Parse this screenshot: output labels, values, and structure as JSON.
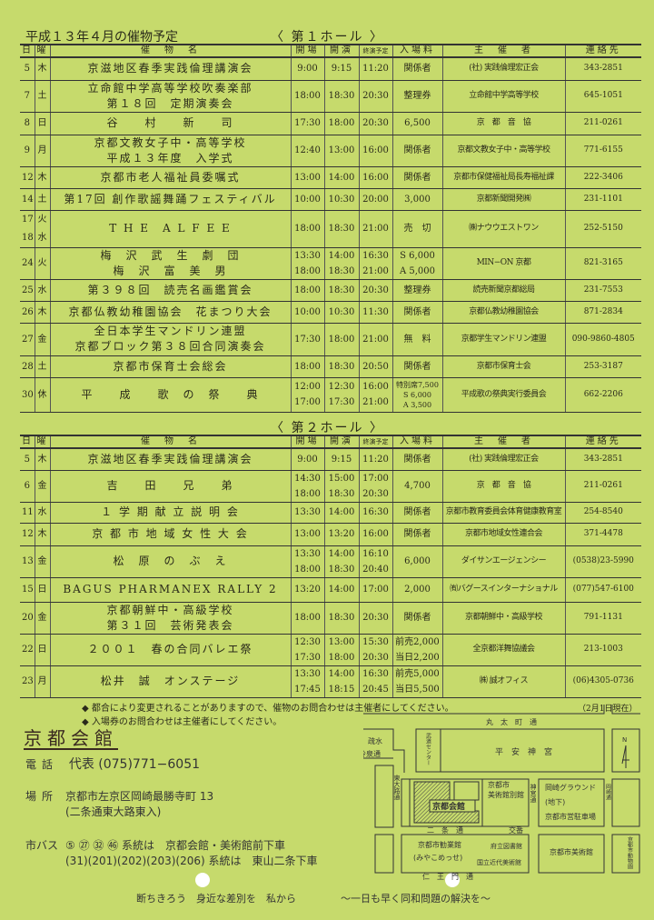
{
  "title": "平成１３年４月の催物予定",
  "headers": {
    "day": "日",
    "dow": "曜",
    "name": "催　物　名",
    "open": "開場",
    "start": "開演",
    "end": "終演予定",
    "fee": "入場料",
    "org": "主　催　者",
    "tel": "連絡先"
  },
  "hall1": {
    "label": "〈 第１ホール 〉",
    "rows": [
      {
        "day": "5",
        "dow": "木",
        "name": "京滋地区春季実践倫理講演会",
        "open": "9:00",
        "start": "9:15",
        "end": "11:20",
        "fee": "関係者",
        "org": "(社) 実践倫理宏正会",
        "tel": "343-2851"
      },
      {
        "day": "7",
        "dow": "土",
        "name": "立命館中学高等学校吹奏楽部\n第１８回　定期演奏会",
        "open": "18:00",
        "start": "18:30",
        "end": "20:30",
        "fee": "整理券",
        "org": "立命館中学高等学校",
        "tel": "645-1051"
      },
      {
        "day": "8",
        "dow": "日",
        "name": "谷　　村　　新　　司",
        "open": "17:30",
        "start": "18:00",
        "end": "20:30",
        "fee": "6,500",
        "org": "京　都　音　協",
        "tel": "211-0261"
      },
      {
        "day": "9",
        "dow": "月",
        "name": "京都文教女子中・高等学校\n平成１３年度　入学式",
        "open": "12:40",
        "start": "13:00",
        "end": "16:00",
        "fee": "関係者",
        "org": "京都文教女子中・高等学校",
        "tel": "771-6155"
      },
      {
        "day": "12",
        "dow": "木",
        "name": "京都市老人福祉員委嘱式",
        "open": "13:00",
        "start": "14:00",
        "end": "16:00",
        "fee": "関係者",
        "org": "京都市保健福祉局長寿福祉課",
        "tel": "222-3406"
      },
      {
        "day": "14",
        "dow": "土",
        "name": "第17回 創作歌謡舞踊フェスティバル",
        "open": "10:00",
        "start": "10:30",
        "end": "20:00",
        "fee": "3,000",
        "org": "京都新聞開発㈱",
        "tel": "231-1101"
      },
      {
        "day": "17\n18",
        "dow": "火\n水",
        "name": "T H E　A L F E E",
        "open": "18:00",
        "start": "18:30",
        "end": "21:00",
        "fee": "売　切",
        "org": "㈱ナウウエストワン",
        "tel": "252-5150"
      },
      {
        "day": "24",
        "dow": "火",
        "name": "梅　沢　武　生　劇　団\n梅　沢　富　美　男",
        "open": "13:30\n18:00",
        "start": "14:00\n18:30",
        "end": "16:30\n21:00",
        "fee": "S 6,000\nA 5,000",
        "org": "MIN−ON 京都",
        "tel": "821-3165"
      },
      {
        "day": "25",
        "dow": "水",
        "name": "第３９８回　読売名画鑑賞会",
        "open": "18:00",
        "start": "18:30",
        "end": "20:30",
        "fee": "整理券",
        "org": "読売新聞京都総局",
        "tel": "231-7553"
      },
      {
        "day": "26",
        "dow": "木",
        "name": "京都仏教幼稚園協会　花まつり大会",
        "open": "10:00",
        "start": "10:30",
        "end": "11:30",
        "fee": "関係者",
        "org": "京都仏教幼稚園協会",
        "tel": "871-2834"
      },
      {
        "day": "27",
        "dow": "金",
        "name": "全日本学生マンドリン連盟\n京都ブロック第３８回合同演奏会",
        "open": "17:30",
        "start": "18:00",
        "end": "21:00",
        "fee": "無　料",
        "org": "京都学生マンドリン連盟",
        "tel": "090-9860-4805"
      },
      {
        "day": "28",
        "dow": "土",
        "name": "京都市保育士会総会",
        "open": "18:00",
        "start": "18:30",
        "end": "20:50",
        "fee": "関係者",
        "org": "京都市保育士会",
        "tel": "253-3187"
      },
      {
        "day": "30",
        "dow": "休",
        "name": "平　　成　　歌　の　祭　　典",
        "open": "12:00\n17:00",
        "start": "12:30\n17:30",
        "end": "16:00\n21:00",
        "fee": "特別席7,500\nS 6,000\nA 3,500",
        "org": "平成歌の祭典実行委員会",
        "tel": "662-2206"
      }
    ]
  },
  "hall2": {
    "label": "〈 第２ホール 〉",
    "rows": [
      {
        "day": "5",
        "dow": "木",
        "name": "京滋地区春季実践倫理講演会",
        "open": "9:00",
        "start": "9:15",
        "end": "11:20",
        "fee": "関係者",
        "org": "(社) 実践倫理宏正会",
        "tel": "343-2851"
      },
      {
        "day": "6",
        "dow": "金",
        "name": "吉　　田　　兄　　弟",
        "open": "14:30\n18:00",
        "start": "15:00\n18:30",
        "end": "17:00\n20:30",
        "fee": "4,700",
        "org": "京　都　音　協",
        "tel": "211-0261"
      },
      {
        "day": "11",
        "dow": "水",
        "name": "１ 学 期 献 立 説 明 会",
        "open": "13:30",
        "start": "14:00",
        "end": "16:30",
        "fee": "関係者",
        "org": "京都市教育委員会体育健康教育室",
        "tel": "254-8540"
      },
      {
        "day": "12",
        "dow": "木",
        "name": "京 都 市 地 域 女 性 大 会",
        "open": "13:00",
        "start": "13:20",
        "end": "16:00",
        "fee": "関係者",
        "org": "京都市地域女性連合会",
        "tel": "371-4478"
      },
      {
        "day": "13",
        "dow": "金",
        "name": "松　原　の　ぶ　え",
        "open": "13:30\n18:00",
        "start": "14:00\n18:30",
        "end": "16:10\n20:40",
        "fee": "6,000",
        "org": "ダイサンエージェンシー",
        "tel": "(0538)23-5990"
      },
      {
        "day": "15",
        "dow": "日",
        "name": "BAGUS PHARMANEX RALLY 2",
        "open": "13:20",
        "start": "14:00",
        "end": "17:00",
        "fee": "2,000",
        "org": "㈲バグースインターナショナル",
        "tel": "(077)547-6100"
      },
      {
        "day": "20",
        "dow": "金",
        "name": "京都朝鮮中・高級学校\n第３１回　芸術発表会",
        "open": "18:00",
        "start": "18:30",
        "end": "20:30",
        "fee": "関係者",
        "org": "京都朝鮮中・高級学校",
        "tel": "791-1131"
      },
      {
        "day": "22",
        "dow": "日",
        "name": "２００１　春の合同バレエ祭",
        "open": "12:30\n17:30",
        "start": "13:00\n18:00",
        "end": "15:30\n20:30",
        "fee": "前売2,000\n当日2,200",
        "org": "全京都洋舞協議会",
        "tel": "213-1003"
      },
      {
        "day": "23",
        "dow": "月",
        "name": "松井　誠　オンステージ",
        "open": "13:30\n17:45",
        "start": "14:00\n18:15",
        "end": "16:30\n20:45",
        "fee": "前売5,000\n当日5,500",
        "org": "㈱ 誠オフィス",
        "tel": "(06)4305-0736"
      }
    ]
  },
  "notes": [
    "◆ 都合により変更されることがありますので、催物のお問合わせは主催者にしてください。",
    "◆ 入場券のお問合わせは主催者にしてください。"
  ],
  "as_of": "（2月1日現在）",
  "venue": {
    "name": "京都会館",
    "phone_label": "電話",
    "phone": "代表 (075)771−6051",
    "place_label": "場所",
    "address": "京都市左京区岡崎最勝寺町 13",
    "address_note": "(二条通東大路東入)",
    "bus_label": "市バス",
    "bus1": "⑤ ㉗ ㉜ ㊻ 系統は　京都会館・美術館前下車",
    "bus2": "(31)(201)(202)(203)(206) 系統は　東山二条下車"
  },
  "map": {
    "marutamachi": "丸　太　町　通",
    "budo": "武道センター",
    "heian": "平　安　神　宮",
    "sosui": "疏水",
    "reisen": "冷泉通",
    "higashioji": "東大路通",
    "kaikan": "京都会館",
    "bekkan1": "京都市",
    "bekkan2": "美術館別館",
    "jingu": "神宮通",
    "ground": "岡崎グラウンド",
    "chika": "(地下)",
    "parking": "京都市営駐車場",
    "okazaki": "岡崎通",
    "nijo": "二　条　通",
    "koban": "交番",
    "kangyo": "京都市勧業館",
    "miyako": "(みやこめっせ)",
    "library": "府立図書館",
    "kindai": "国立近代美術館",
    "bijutsukan": "京都市美術館",
    "zoo": "京都市動物園",
    "niomon": "仁　王　門　通",
    "north": "N"
  },
  "slogan1": "断ちきろう　身近な差別を　私から",
  "slogan2": "～一日も早く同和問題の解決を～",
  "colors": {
    "paper": "#c6da6c",
    "ink": "#2a2a1a"
  }
}
